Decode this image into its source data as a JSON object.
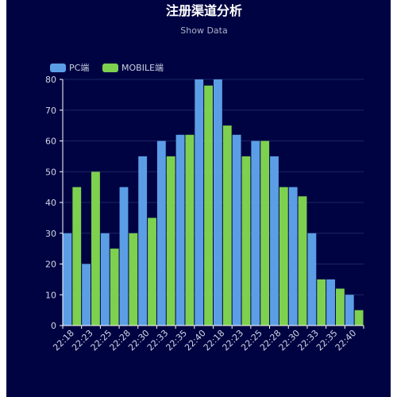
{
  "chart_data": {
    "type": "bar",
    "title": "注册渠道分析",
    "subtitle": "Show Data",
    "categories": [
      "22:18",
      "22:23",
      "22:25",
      "22:28",
      "22:30",
      "22:33",
      "22:35",
      "22:40",
      "22:18",
      "22:23",
      "22:25",
      "22:28",
      "22:30",
      "22:33",
      "22:35",
      "22:40"
    ],
    "series": [
      {
        "name": "PC端",
        "color": "#5b9ee6",
        "values": [
          30,
          20,
          30,
          45,
          55,
          60,
          62,
          80,
          80,
          62,
          60,
          55,
          45,
          30,
          15,
          10
        ]
      },
      {
        "name": "MOBILE端",
        "color": "#7ed04f",
        "values": [
          45,
          50,
          25,
          30,
          35,
          55,
          62,
          78,
          65,
          55,
          60,
          45,
          42,
          15,
          12,
          5
        ]
      }
    ],
    "ylim": [
      0,
      80
    ],
    "yticks": [
      0,
      10,
      20,
      30,
      40,
      50,
      60,
      70,
      80
    ],
    "grid": true,
    "legend_position": "top-left",
    "background": "#000342",
    "grid_color": "#1c2466",
    "axis_color": "#ffffff"
  }
}
